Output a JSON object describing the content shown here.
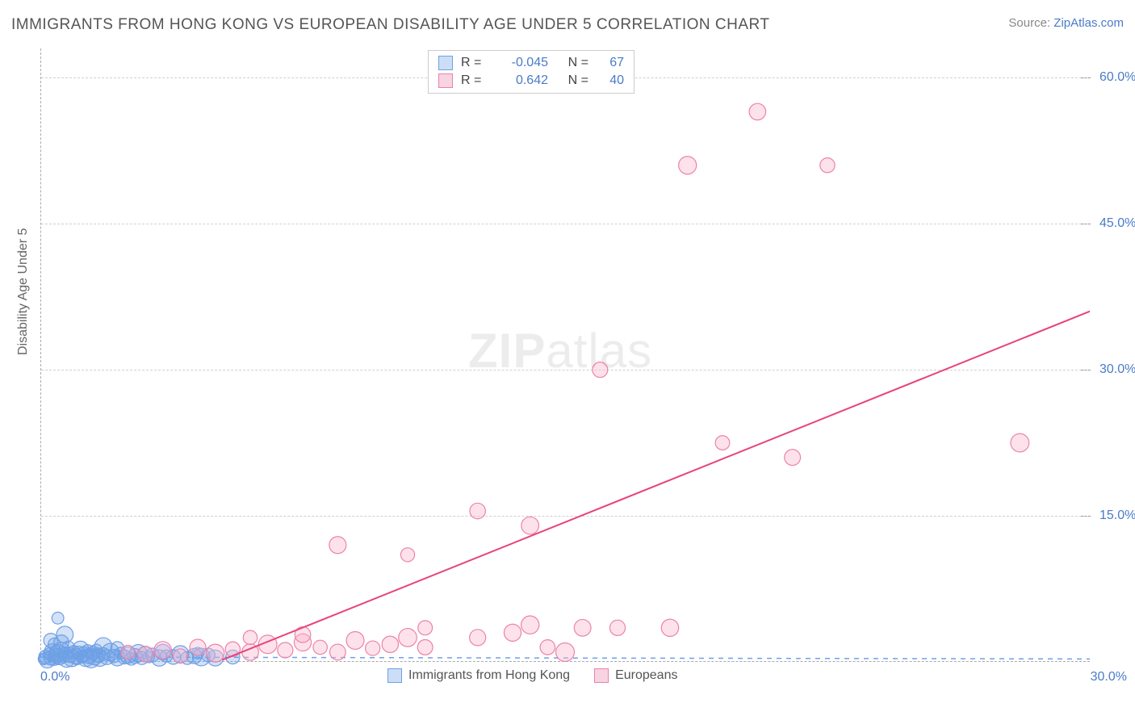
{
  "chart": {
    "type": "scatter",
    "title": "IMMIGRANTS FROM HONG KONG VS EUROPEAN DISABILITY AGE UNDER 5 CORRELATION CHART",
    "source_prefix": "Source: ",
    "source_link": "ZipAtlas.com",
    "watermark_zip": "ZIP",
    "watermark_atlas": "atlas",
    "background_color": "#ffffff",
    "grid_color": "#d0d0d0",
    "axis_color": "#aaaaaa",
    "tick_text_color": "#4a7bc8",
    "axis_label_color": "#666666",
    "title_color": "#555555",
    "title_fontsize": 19,
    "axis_label_fontsize": 16,
    "tick_fontsize": 16,
    "y_axis_label": "Disability Age Under 5",
    "xlim": [
      0,
      30
    ],
    "ylim": [
      0,
      63
    ],
    "x_ticks": [
      {
        "v": 0,
        "label": "0.0%"
      },
      {
        "v": 30,
        "label": "30.0%"
      }
    ],
    "y_ticks": [
      {
        "v": 15,
        "label": "15.0%"
      },
      {
        "v": 30,
        "label": "30.0%"
      },
      {
        "v": 45,
        "label": "45.0%"
      },
      {
        "v": 60,
        "label": "60.0%"
      }
    ],
    "series": [
      {
        "name": "Immigrants from Hong Kong",
        "color_fill": "rgba(110,160,230,0.30)",
        "color_stroke": "#6ea0e6",
        "marker_radius": 9,
        "marker_radius_variance": 4,
        "R_value": "-0.045",
        "N_value": "67",
        "trendline": {
          "x1": 0,
          "y1": 0.5,
          "x2": 30,
          "y2": 0.3,
          "dashed": true
        },
        "points": [
          [
            0.1,
            0.3
          ],
          [
            0.15,
            0.5
          ],
          [
            0.2,
            0.2
          ],
          [
            0.25,
            0.8
          ],
          [
            0.3,
            0.4
          ],
          [
            0.35,
            1.0
          ],
          [
            0.4,
            0.3
          ],
          [
            0.45,
            0.6
          ],
          [
            0.5,
            0.9
          ],
          [
            0.55,
            0.4
          ],
          [
            0.6,
            1.2
          ],
          [
            0.65,
            0.5
          ],
          [
            0.7,
            0.8
          ],
          [
            0.75,
            0.3
          ],
          [
            0.8,
            1.5
          ],
          [
            0.85,
            0.7
          ],
          [
            0.9,
            0.4
          ],
          [
            0.95,
            1.0
          ],
          [
            1.0,
            0.6
          ],
          [
            1.05,
            0.3
          ],
          [
            1.1,
            0.9
          ],
          [
            1.15,
            1.3
          ],
          [
            1.2,
            0.5
          ],
          [
            1.25,
            0.8
          ],
          [
            1.3,
            0.4
          ],
          [
            1.35,
            1.1
          ],
          [
            1.4,
            0.6
          ],
          [
            1.45,
            0.3
          ],
          [
            1.5,
            0.9
          ],
          [
            1.55,
            0.5
          ],
          [
            1.6,
            1.2
          ],
          [
            1.65,
            0.7
          ],
          [
            1.7,
            0.4
          ],
          [
            1.8,
            0.8
          ],
          [
            1.9,
            0.5
          ],
          [
            2.0,
            1.0
          ],
          [
            2.1,
            0.6
          ],
          [
            2.2,
            0.4
          ],
          [
            2.3,
            0.9
          ],
          [
            2.4,
            0.5
          ],
          [
            2.5,
            0.7
          ],
          [
            2.6,
            0.3
          ],
          [
            2.7,
            0.6
          ],
          [
            2.8,
            0.9
          ],
          [
            2.9,
            0.4
          ],
          [
            3.0,
            0.8
          ],
          [
            3.1,
            0.5
          ],
          [
            3.2,
            0.7
          ],
          [
            3.4,
            0.4
          ],
          [
            3.6,
            0.6
          ],
          [
            3.8,
            0.5
          ],
          [
            4.0,
            0.8
          ],
          [
            4.2,
            0.4
          ],
          [
            4.4,
            0.6
          ],
          [
            4.6,
            0.5
          ],
          [
            4.8,
            0.7
          ],
          [
            5.0,
            0.4
          ],
          [
            0.5,
            4.5
          ],
          [
            0.3,
            2.2
          ],
          [
            0.7,
            2.8
          ],
          [
            0.4,
            1.8
          ],
          [
            0.6,
            2.0
          ],
          [
            1.8,
            1.6
          ],
          [
            2.2,
            1.4
          ],
          [
            3.5,
            1.0
          ],
          [
            4.5,
            0.9
          ],
          [
            5.5,
            0.5
          ]
        ]
      },
      {
        "name": "Europeans",
        "color_fill": "rgba(252,182,206,0.40)",
        "color_stroke": "#ec82aa",
        "marker_radius": 10,
        "marker_radius_variance": 3,
        "R_value": "0.642",
        "N_value": "40",
        "trendline": {
          "x1": 5.2,
          "y1": 0.2,
          "x2": 30,
          "y2": 36,
          "dashed": false
        },
        "points": [
          [
            2.5,
            1.0
          ],
          [
            3.0,
            0.8
          ],
          [
            3.5,
            1.2
          ],
          [
            4.0,
            0.6
          ],
          [
            4.5,
            1.5
          ],
          [
            5.0,
            0.9
          ],
          [
            5.5,
            1.3
          ],
          [
            6.0,
            1.0
          ],
          [
            6.5,
            1.8
          ],
          [
            7.0,
            1.2
          ],
          [
            7.5,
            2.0
          ],
          [
            8.0,
            1.5
          ],
          [
            8.5,
            1.0
          ],
          [
            9.0,
            2.2
          ],
          [
            9.5,
            1.4
          ],
          [
            10.0,
            1.8
          ],
          [
            10.5,
            2.5
          ],
          [
            11.0,
            1.5
          ],
          [
            8.5,
            12.0
          ],
          [
            10.5,
            11.0
          ],
          [
            12.5,
            15.5
          ],
          [
            14.0,
            14.0
          ],
          [
            11.0,
            3.5
          ],
          [
            12.5,
            2.5
          ],
          [
            14.0,
            3.8
          ],
          [
            14.5,
            1.5
          ],
          [
            15.5,
            3.5
          ],
          [
            15.0,
            1.0
          ],
          [
            16.5,
            3.5
          ],
          [
            18.0,
            3.5
          ],
          [
            19.5,
            22.5
          ],
          [
            21.5,
            21.0
          ],
          [
            18.5,
            51.0
          ],
          [
            22.5,
            51.0
          ],
          [
            20.5,
            56.5
          ],
          [
            28.0,
            22.5
          ],
          [
            16.0,
            30.0
          ],
          [
            13.5,
            3.0
          ],
          [
            6.0,
            2.5
          ],
          [
            7.5,
            2.8
          ]
        ]
      }
    ],
    "legend_labels": {
      "r_eq": "R =",
      "n_eq": "N ="
    }
  }
}
